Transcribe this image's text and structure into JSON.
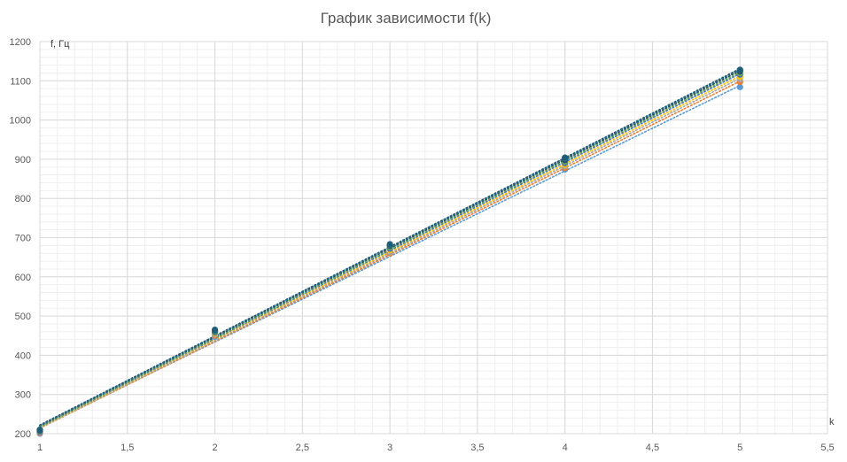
{
  "chart_data": {
    "type": "scatter",
    "title": "График зависимости f(k)",
    "xlabel": "k",
    "ylabel": "f, Гц",
    "xlim": [
      1,
      5.5
    ],
    "ylim": [
      200,
      1200
    ],
    "x_major_step": 0.5,
    "x_minor_step": 0.1,
    "y_major_step": 100,
    "y_minor_step": 20,
    "x_tick_labels": [
      "1",
      "1,5",
      "2",
      "2,5",
      "3",
      "3,5",
      "4",
      "4,5",
      "5",
      "5,5"
    ],
    "y_tick_labels": [
      "200",
      "300",
      "400",
      "500",
      "600",
      "700",
      "800",
      "900",
      "1000",
      "1100",
      "1200"
    ],
    "grid": true,
    "legend": "none",
    "trendlines": "linear, dotted",
    "series": [
      {
        "color": "#5B9BD5",
        "x": [
          1,
          2,
          3,
          4,
          5
        ],
        "values": [
          200,
          447,
          665,
          874,
          1084
        ],
        "trend": [
          216,
          1088
        ]
      },
      {
        "color": "#ED7D31",
        "x": [
          1,
          2,
          3,
          4,
          5
        ],
        "values": [
          202,
          450,
          660,
          878,
          1097
        ],
        "trend": [
          214,
          1099
        ]
      },
      {
        "color": "#A5A5A5",
        "x": [
          1,
          2,
          3,
          4,
          5
        ],
        "values": [
          204,
          453,
          663,
          882,
          1104
        ],
        "trend": [
          215,
          1106
        ]
      },
      {
        "color": "#FFC000",
        "x": [
          1,
          2,
          3,
          4,
          5
        ],
        "values": [
          206,
          456,
          668,
          886,
          1110
        ],
        "trend": [
          216,
          1112
        ]
      },
      {
        "color": "#4472C4",
        "x": [
          1,
          2,
          3,
          4,
          5
        ],
        "values": [
          205,
          458,
          672,
          890,
          1116
        ],
        "trend": [
          217,
          1118
        ]
      },
      {
        "color": "#70AD47",
        "x": [
          1,
          2,
          3,
          4,
          5
        ],
        "values": [
          207,
          460,
          676,
          894,
          1120
        ],
        "trend": [
          218,
          1122
        ]
      },
      {
        "color": "#264478",
        "x": [
          1,
          2,
          3,
          4,
          5
        ],
        "values": [
          208,
          462,
          679,
          898,
          1124
        ],
        "trend": [
          220,
          1126
        ]
      },
      {
        "color": "#2E7D78",
        "x": [
          1,
          2,
          3,
          4,
          5
        ],
        "values": [
          209,
          463,
          681,
          902,
          1127
        ],
        "trend": [
          221,
          1129
        ]
      },
      {
        "color": "#1F5C78",
        "x": [
          1,
          2,
          3,
          4,
          5
        ],
        "values": [
          210,
          465,
          683,
          904,
          1128
        ],
        "trend": [
          222,
          1131
        ]
      }
    ]
  }
}
